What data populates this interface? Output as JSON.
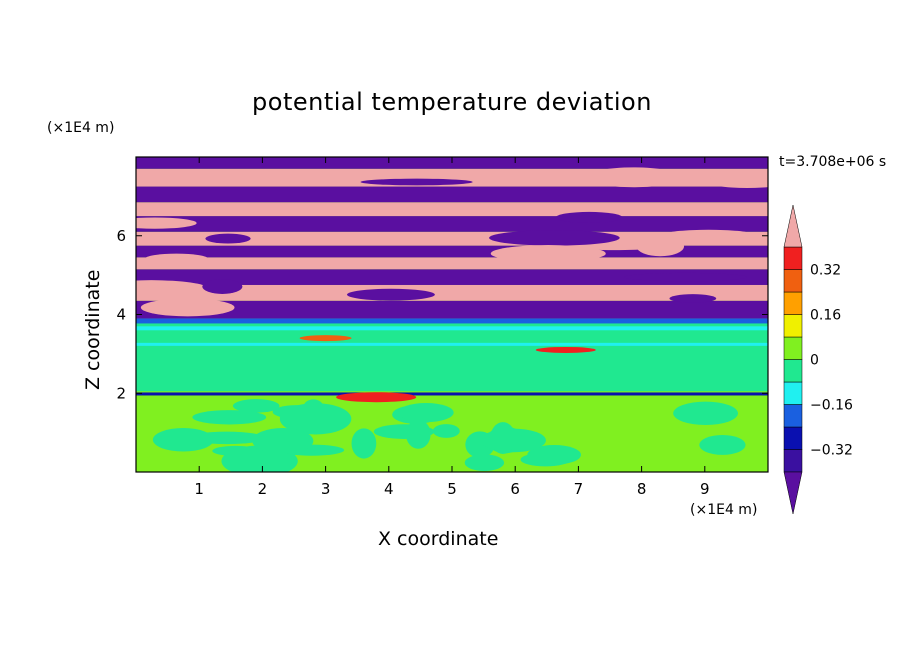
{
  "chart_data": {
    "type": "heatmap",
    "title": "potential temperature deviation",
    "xlabel": "X coordinate",
    "ylabel": "Z coordinate",
    "x_unit": "(×1E4 m)",
    "z_unit": "(×1E4 m)",
    "time_label": "t=3.708e+06 s",
    "xlim": [
      0,
      10
    ],
    "ylim": [
      0,
      8
    ],
    "x_ticks": [
      "1",
      "2",
      "3",
      "4",
      "5",
      "6",
      "7",
      "8",
      "9"
    ],
    "y_ticks": [
      "2",
      "4",
      "6"
    ],
    "colorbar": {
      "levels": [
        -0.4,
        -0.32,
        -0.24,
        -0.16,
        -0.08,
        0,
        0.08,
        0.16,
        0.24,
        0.32,
        0.4
      ],
      "labels": [
        "0.32",
        "0.16",
        "0",
        "-0.16",
        "-0.32"
      ],
      "colors_bottom_to_top": [
        "#5a0fa0",
        "#3a10a0",
        "#0a10b0",
        "#1a60e0",
        "#20f0f0",
        "#20e890",
        "#80f020",
        "#f0f000",
        "#ffa000",
        "#f06010",
        "#f02020",
        "#f0a8a8"
      ],
      "extend": "both"
    },
    "regions": [
      {
        "z_range": [
          0,
          1.9
        ],
        "dominant_value_range": [
          0,
          0.08
        ],
        "secondary_value_range": [
          -0.08,
          0
        ]
      },
      {
        "z_range": [
          1.9,
          2.05
        ],
        "description_values": [
          -0.32,
          0.32
        ]
      },
      {
        "z_range": [
          2.05,
          3.9
        ],
        "dominant_value_range": [
          -0.08,
          0
        ]
      },
      {
        "z_range": [
          3.9,
          8
        ],
        "alternating_value_ranges": [
          [
            0.4,
            0.5
          ],
          [
            -0.5,
            -0.4
          ]
        ]
      }
    ]
  }
}
